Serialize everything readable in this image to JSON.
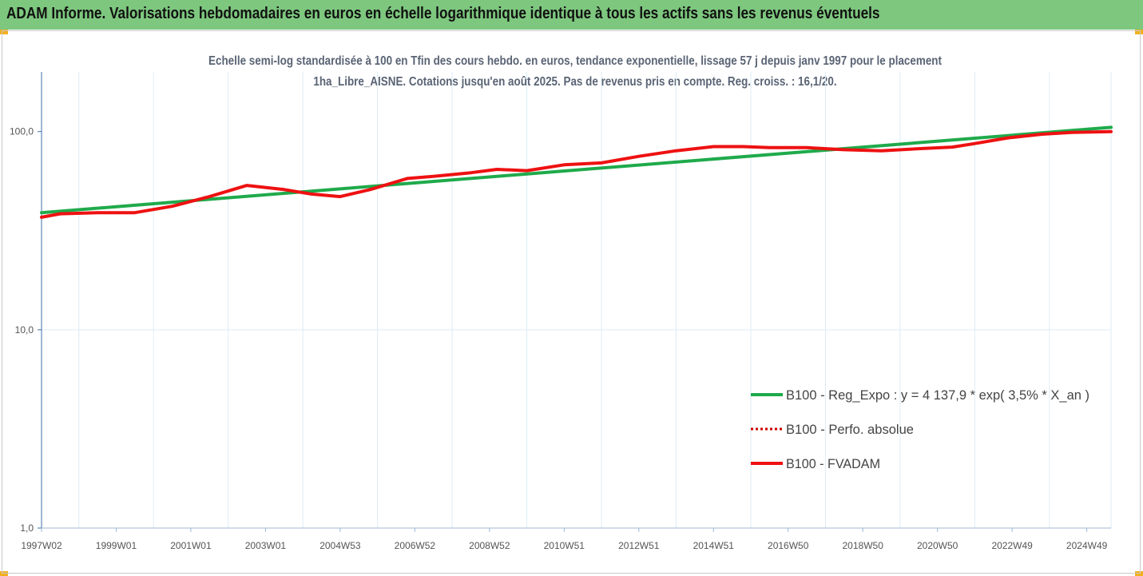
{
  "header": {
    "title": "ADAM Informe. Valorisations hebdomadaires en euros en échelle logarithmique identique à tous les actifs sans les revenus éventuels"
  },
  "colors": {
    "header_bg": "#7dc77e",
    "reg_line": "#1faa4b",
    "fvadam_line": "#ee1111",
    "perfo_line": "#cc0000",
    "corner": "#f2b01e"
  },
  "chart_data": {
    "type": "line",
    "title": "Echelle semi-log standardisée à 100 en Tfin des cours hebdo. en euros, tendance exponentielle, lissage 57 j depuis janv 1997 pour le placement 1ha_Libre_AISNE. Cotations jusqu'en août 2025. Pas de revenus pris en compte. Reg. croiss. : 16,1/20.",
    "y_scale": "log",
    "ylim": [
      1,
      200
    ],
    "y_ticks": [
      "1,0",
      "10,0",
      "100,0"
    ],
    "y_tick_values": [
      1,
      10,
      100
    ],
    "x_range": [
      1997.0,
      2025.65
    ],
    "x_tick_labels": [
      "1997W02",
      "1999W01",
      "2001W01",
      "2003W01",
      "2004W53",
      "2006W52",
      "2008W52",
      "2010W51",
      "2012W51",
      "2014W51",
      "2016W50",
      "2018W50",
      "2020W50",
      "2022W49",
      "2024W49"
    ],
    "x_tick_values": [
      1997.0,
      1999.0,
      2001.0,
      2003.0,
      2005.0,
      2007.0,
      2009.0,
      2011.0,
      2013.0,
      2015.0,
      2017.0,
      2019.0,
      2021.0,
      2023.0,
      2025.0
    ],
    "grid": "vertical",
    "legend": "right",
    "series": [
      {
        "name": "B100 - Reg_Expo : y = 4 137,9 * exp( 3,5% *  X_an )",
        "style": "solid",
        "color": "#1faa4b",
        "x": [
          1997.0,
          2025.65
        ],
        "y": [
          39.0,
          105.0
        ]
      },
      {
        "name": "B100 - Perfo. absolue",
        "style": "dotted",
        "color": "#cc0000",
        "x": [
          1997.0,
          1997.5,
          1998.5,
          1999.5,
          2000.5,
          2001.5,
          2002.5,
          2003.5,
          2004.2,
          2005.0,
          2005.8,
          2006.8,
          2007.5,
          2008.5,
          2009.2,
          2010.0,
          2011.0,
          2012.0,
          2013.0,
          2014.0,
          2015.0,
          2015.8,
          2016.5,
          2017.5,
          2018.5,
          2019.5,
          2020.5,
          2021.4,
          2022.0,
          2022.9,
          2023.8,
          2024.6,
          2025.65
        ],
        "y": [
          37.0,
          38.5,
          39.0,
          39.0,
          42.0,
          47.0,
          53.5,
          51.0,
          48.5,
          47.0,
          51.0,
          58.0,
          59.5,
          62.0,
          64.5,
          63.5,
          68.0,
          69.5,
          75.0,
          80.0,
          84.0,
          84.0,
          83.0,
          83.0,
          81.0,
          80.0,
          82.0,
          83.5,
          87.0,
          93.0,
          97.0,
          99.0,
          100.0
        ]
      },
      {
        "name": "B100 - FVADAM",
        "style": "solid",
        "color": "#ee1111",
        "x": [
          1997.0,
          1997.5,
          1998.5,
          1999.5,
          2000.5,
          2001.5,
          2002.5,
          2003.5,
          2004.2,
          2005.0,
          2005.8,
          2006.8,
          2007.5,
          2008.5,
          2009.2,
          2010.0,
          2011.0,
          2012.0,
          2013.0,
          2014.0,
          2015.0,
          2015.8,
          2016.5,
          2017.5,
          2018.5,
          2019.5,
          2020.5,
          2021.4,
          2022.0,
          2022.9,
          2023.8,
          2024.6,
          2025.65
        ],
        "y": [
          37.0,
          38.5,
          39.0,
          39.0,
          42.0,
          47.0,
          53.5,
          51.0,
          48.5,
          47.0,
          51.0,
          58.0,
          59.5,
          62.0,
          64.5,
          63.5,
          68.0,
          69.5,
          75.0,
          80.0,
          84.0,
          84.0,
          83.0,
          83.0,
          81.0,
          80.0,
          82.0,
          83.5,
          87.0,
          93.0,
          97.0,
          99.0,
          100.0
        ]
      }
    ]
  }
}
